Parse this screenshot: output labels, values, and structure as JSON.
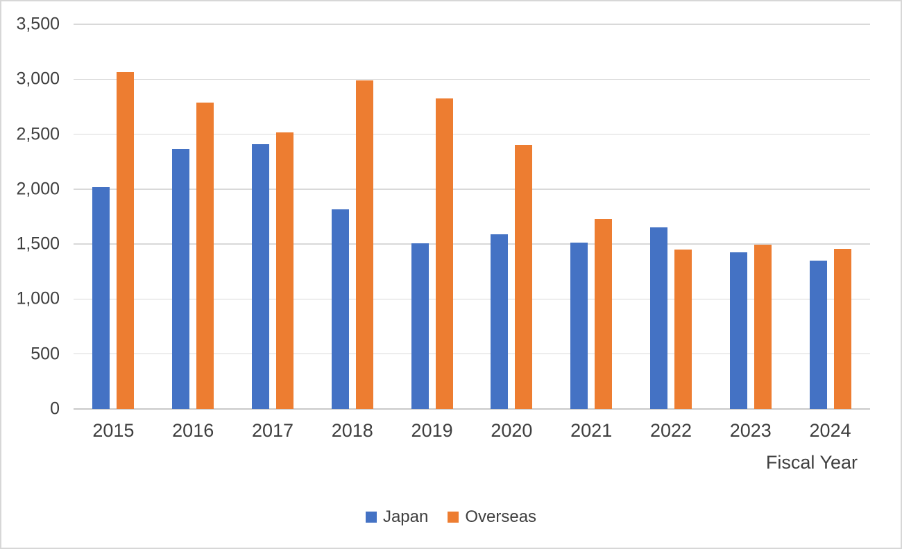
{
  "window": {
    "background": "#ffffff",
    "border_color": "#d7d7d7"
  },
  "colors": {
    "japan_bar": "#4472C4",
    "overseas_bar": "#ED7D31",
    "gridline": "#d9d9d9",
    "axis_baseline": "#c9c9c9",
    "axis_text": "#3f3f3f"
  },
  "chart_data": {
    "type": "bar",
    "title": "",
    "categories": [
      "2015",
      "2016",
      "2017",
      "2018",
      "2019",
      "2020",
      "2021",
      "2022",
      "2023",
      "2024"
    ],
    "series": [
      {
        "name": "Japan",
        "color": "#4472C4",
        "values": [
          2020,
          2365,
          2410,
          1815,
          1510,
          1590,
          1515,
          1655,
          1425,
          1350
        ]
      },
      {
        "name": "Overseas",
        "color": "#ED7D31",
        "values": [
          3065,
          2785,
          2515,
          2990,
          2825,
          2405,
          1730,
          1450,
          1495,
          1455
        ]
      }
    ],
    "xlabel": "Fiscal Year",
    "ylabel": "",
    "ylim": [
      0,
      3500
    ],
    "yticks": [
      {
        "value": 0,
        "label": "0"
      },
      {
        "value": 500,
        "label": "500"
      },
      {
        "value": 1000,
        "label": "1,000"
      },
      {
        "value": 1500,
        "label": "1,500"
      },
      {
        "value": 2000,
        "label": "2,000"
      },
      {
        "value": 2500,
        "label": "2,500"
      },
      {
        "value": 3000,
        "label": "3,000"
      },
      {
        "value": 3500,
        "label": "3,500"
      }
    ],
    "grid": true,
    "legend_position": "bottom",
    "legend": [
      {
        "label": "Japan",
        "color": "#4472C4"
      },
      {
        "label": "Overseas",
        "color": "#ED7D31"
      }
    ]
  }
}
